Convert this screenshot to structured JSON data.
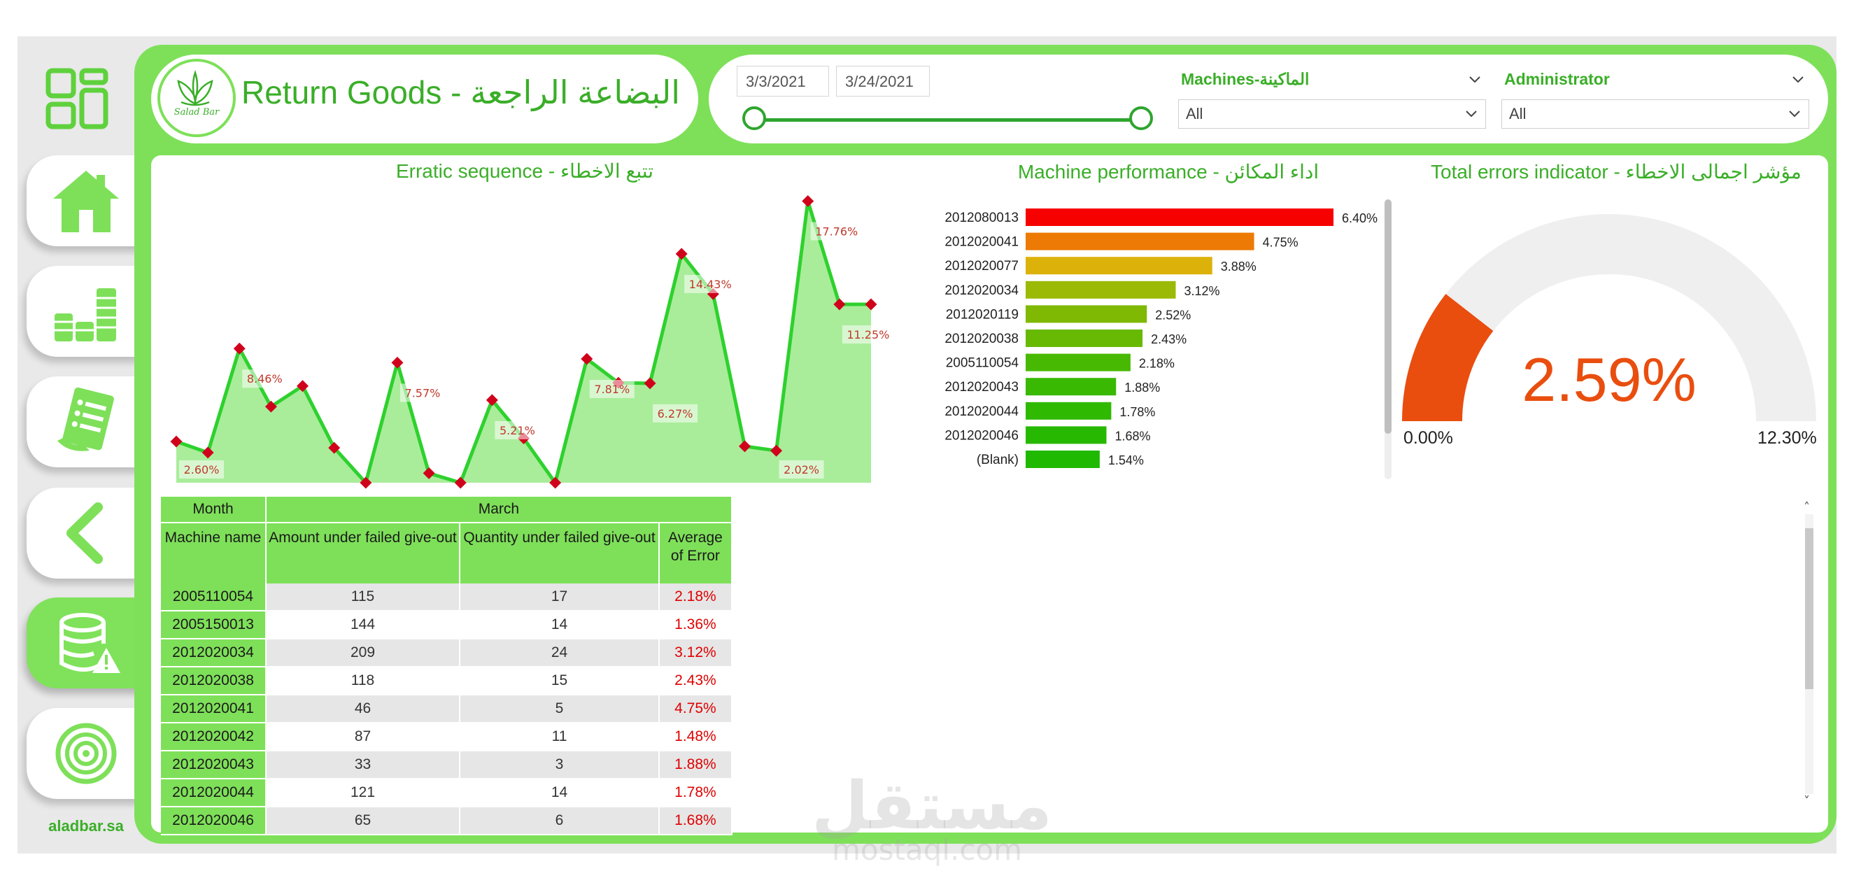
{
  "header": {
    "title": "Return Goods - البضاعة الراجعة",
    "logo_text": "Salad Bar",
    "site_label": "aladbar.sa"
  },
  "sidebar": {
    "items": [
      {
        "name": "home",
        "icon": "home-icon"
      },
      {
        "name": "finance",
        "icon": "coins-icon"
      },
      {
        "name": "reports",
        "icon": "report-icon"
      },
      {
        "name": "back",
        "icon": "chevron-left-icon"
      },
      {
        "name": "return-goods",
        "icon": "database-warning-icon",
        "active": true
      },
      {
        "name": "target",
        "icon": "target-icon"
      }
    ]
  },
  "filters": {
    "date_start": "3/3/2021",
    "date_end": "3/24/2021",
    "machines_label": "Machines-الماكينة",
    "machines_value": "All",
    "administrator_label": "Administrator",
    "administrator_value": "All"
  },
  "colors": {
    "brand_green": "#7ee059",
    "title_green": "#3aae28",
    "line_green": "#2ed12e",
    "area_green": "#a9ed9a",
    "marker_red": "#d0021b",
    "gauge_orange": "#e94e0f",
    "error_red": "#e00000"
  },
  "chart_data": [
    {
      "type": "area",
      "title": "Erratic sequence - تتبع الاخطاء",
      "x": [
        1,
        2,
        3,
        4,
        5,
        6,
        7,
        8,
        9,
        10,
        11,
        12,
        13,
        14,
        15,
        16,
        17,
        18,
        19,
        20,
        21,
        22,
        23
      ],
      "values": [
        2.6,
        1.9,
        8.46,
        4.8,
        6.1,
        2.2,
        0.0,
        7.57,
        0.6,
        0.0,
        5.21,
        2.8,
        0.0,
        7.81,
        6.3,
        6.27,
        14.43,
        11.9,
        2.3,
        2.02,
        17.76,
        11.25,
        11.25
      ],
      "data_labels": [
        {
          "index": 0,
          "label": "2.60%"
        },
        {
          "index": 2,
          "label": "8.46%"
        },
        {
          "index": 7,
          "label": "7.57%"
        },
        {
          "index": 10,
          "label": "5.21%"
        },
        {
          "index": 13,
          "label": "7.81%"
        },
        {
          "index": 15,
          "label": "6.27%"
        },
        {
          "index": 16,
          "label": "14.43%"
        },
        {
          "index": 19,
          "label": "2.02%"
        },
        {
          "index": 20,
          "label": "17.76%"
        },
        {
          "index": 21,
          "label": "11.25%"
        }
      ],
      "ylim": [
        0,
        18
      ]
    },
    {
      "type": "bar",
      "orientation": "horizontal",
      "title": "Machine performance - اداء المكائن",
      "categories": [
        "2012080013",
        "2012020041",
        "2012020077",
        "2012020034",
        "2012020119",
        "2012020038",
        "2005110054",
        "2012020043",
        "2012020044",
        "2012020046",
        "(Blank)"
      ],
      "values": [
        6.4,
        4.75,
        3.88,
        3.12,
        2.52,
        2.43,
        2.18,
        1.88,
        1.78,
        1.68,
        1.54
      ],
      "labels": [
        "6.40%",
        "4.75%",
        "3.88%",
        "3.12%",
        "2.52%",
        "2.43%",
        "2.18%",
        "1.88%",
        "1.78%",
        "1.68%",
        "1.54%"
      ],
      "bar_colors": [
        "#f60000",
        "#ec7a04",
        "#dcb20a",
        "#9aba05",
        "#7fb904",
        "#68b904",
        "#48b902",
        "#39b902",
        "#2fb901",
        "#27b901",
        "#1fb901"
      ]
    },
    {
      "type": "gauge",
      "title": "Total errors indicator - مؤشر اجمالى الاخطاء",
      "value": 2.59,
      "value_label": "2.59%",
      "min": 0,
      "max": 12.3,
      "min_label": "0.00%",
      "max_label": "12.30%"
    }
  ],
  "table": {
    "header_month": "Month",
    "header_period": "March",
    "columns": [
      "Machine name",
      "Amount under failed give-out",
      "Quantity under failed give-out",
      "Average of Error"
    ],
    "rows": [
      {
        "machine": "2005110054",
        "amount": "115",
        "quantity": "17",
        "error": "2.18%"
      },
      {
        "machine": "2005150013",
        "amount": "144",
        "quantity": "14",
        "error": "1.36%"
      },
      {
        "machine": "2012020034",
        "amount": "209",
        "quantity": "24",
        "error": "3.12%"
      },
      {
        "machine": "2012020038",
        "amount": "118",
        "quantity": "15",
        "error": "2.43%"
      },
      {
        "machine": "2012020041",
        "amount": "46",
        "quantity": "5",
        "error": "4.75%"
      },
      {
        "machine": "2012020042",
        "amount": "87",
        "quantity": "11",
        "error": "1.48%"
      },
      {
        "machine": "2012020043",
        "amount": "33",
        "quantity": "3",
        "error": "1.88%"
      },
      {
        "machine": "2012020044",
        "amount": "121",
        "quantity": "14",
        "error": "1.78%"
      },
      {
        "machine": "2012020046",
        "amount": "65",
        "quantity": "6",
        "error": "1.68%"
      }
    ]
  },
  "watermark": {
    "text": "مستقل",
    "url": "mostaql.com"
  }
}
